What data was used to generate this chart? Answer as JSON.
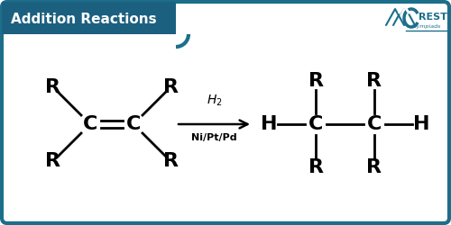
{
  "title": "Addition Reactions",
  "title_bg": "#1c6080",
  "title_text_color": "#ffffff",
  "border_color": "#1c6f8a",
  "main_bg": "#ffffff",
  "reaction_arrow_label_top": "$H_2$",
  "reaction_arrow_label_bottom": "Ni/Pt/Pd",
  "crest_color": "#1c6f8a",
  "fig_width": 5.0,
  "fig_height": 2.5,
  "dpi": 100
}
